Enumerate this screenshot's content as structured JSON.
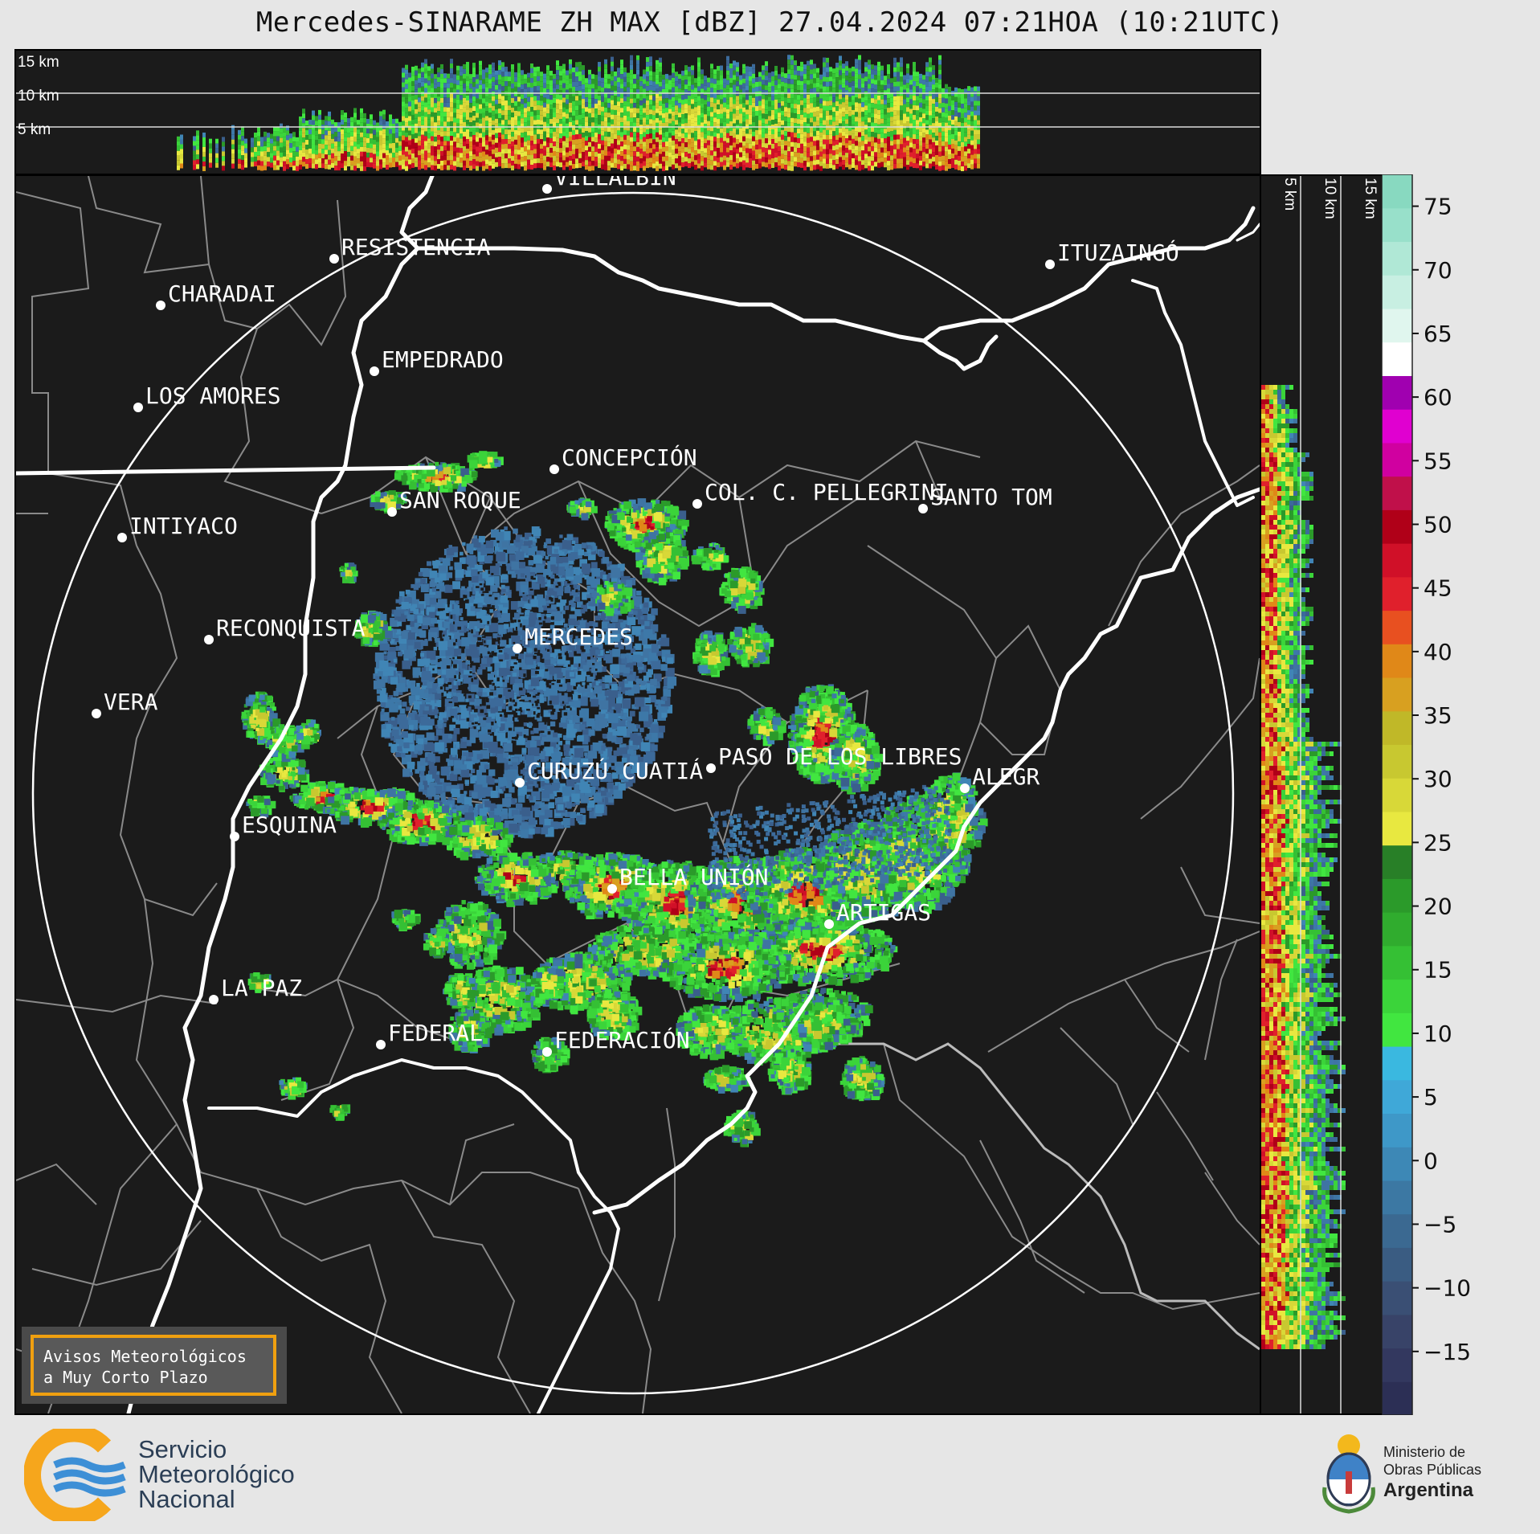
{
  "title": "Mercedes-SINARAME ZH MAX [dBZ] 27.04.2024 07:21HOA (10:21UTC)",
  "top_panel": {
    "height_labels": [
      "15 km",
      "10 km",
      "5 km"
    ]
  },
  "side_panel": {
    "height_labels": [
      "5 km",
      "10 km",
      "15 km"
    ]
  },
  "colorbar": {
    "ticks": [
      "75",
      "70",
      "65",
      "60",
      "55",
      "50",
      "45",
      "40",
      "35",
      "30",
      "25",
      "20",
      "15",
      "10",
      "5",
      "0",
      "−5",
      "−10",
      "−15"
    ],
    "colors": [
      "#2c2f55",
      "#33385f",
      "#384368",
      "#3a4f74",
      "#3a5c82",
      "#3b6991",
      "#3c78a3",
      "#3d88b6",
      "#3e98c8",
      "#3fa8d8",
      "#3ab8e0",
      "#41e640",
      "#3bd43a",
      "#35c034",
      "#30ac2e",
      "#2b9a2a",
      "#287f27",
      "#e8e840",
      "#d8d838",
      "#c8c830",
      "#c0b828",
      "#d8a020",
      "#e08818",
      "#e85020",
      "#e0202c",
      "#d01028",
      "#b00018",
      "#c0104a",
      "#d000a0",
      "#e000d0",
      "#a000b0",
      "#ffffff",
      "#e0f6ee",
      "#c8efe2",
      "#b0e8d6",
      "#98e0ca",
      "#88d9c0"
    ]
  },
  "places": [
    {
      "name": "VILLALBÍN"
    },
    {
      "name": "RESISTENCIA"
    },
    {
      "name": "CHARADAI"
    },
    {
      "name": "ITUZAINGÓ"
    },
    {
      "name": "EMPEDRADO"
    },
    {
      "name": "LOS AMORES"
    },
    {
      "name": "CONCEPCIÓN"
    },
    {
      "name": "SAN ROQUE"
    },
    {
      "name": "COL. C. PELLEGRINI"
    },
    {
      "name": "SANTO TOM"
    },
    {
      "name": "INTIYACO"
    },
    {
      "name": "MERCEDES"
    },
    {
      "name": "RECONQUISTA"
    },
    {
      "name": "VERA"
    },
    {
      "name": "PASO DE LOS LIBRES"
    },
    {
      "name": "CURUZÚ CUATIÁ"
    },
    {
      "name": "ALEGR"
    },
    {
      "name": "ESQUINA"
    },
    {
      "name": "BELLA UNIÓN"
    },
    {
      "name": "ARTIGAS"
    },
    {
      "name": "LA PAZ"
    },
    {
      "name": "FEDERAL"
    },
    {
      "name": "FEDERACIÓN"
    }
  ],
  "notice": {
    "line1": "Avisos Meteorológicos",
    "line2": "a Muy Corto Plazo"
  },
  "smn": {
    "line1": "Servicio",
    "line2": "Meteorológico",
    "line3": "Nacional"
  },
  "ministry": {
    "line1": "Ministerio de",
    "line2": "Obras Públicas",
    "line3": "Argentina"
  }
}
